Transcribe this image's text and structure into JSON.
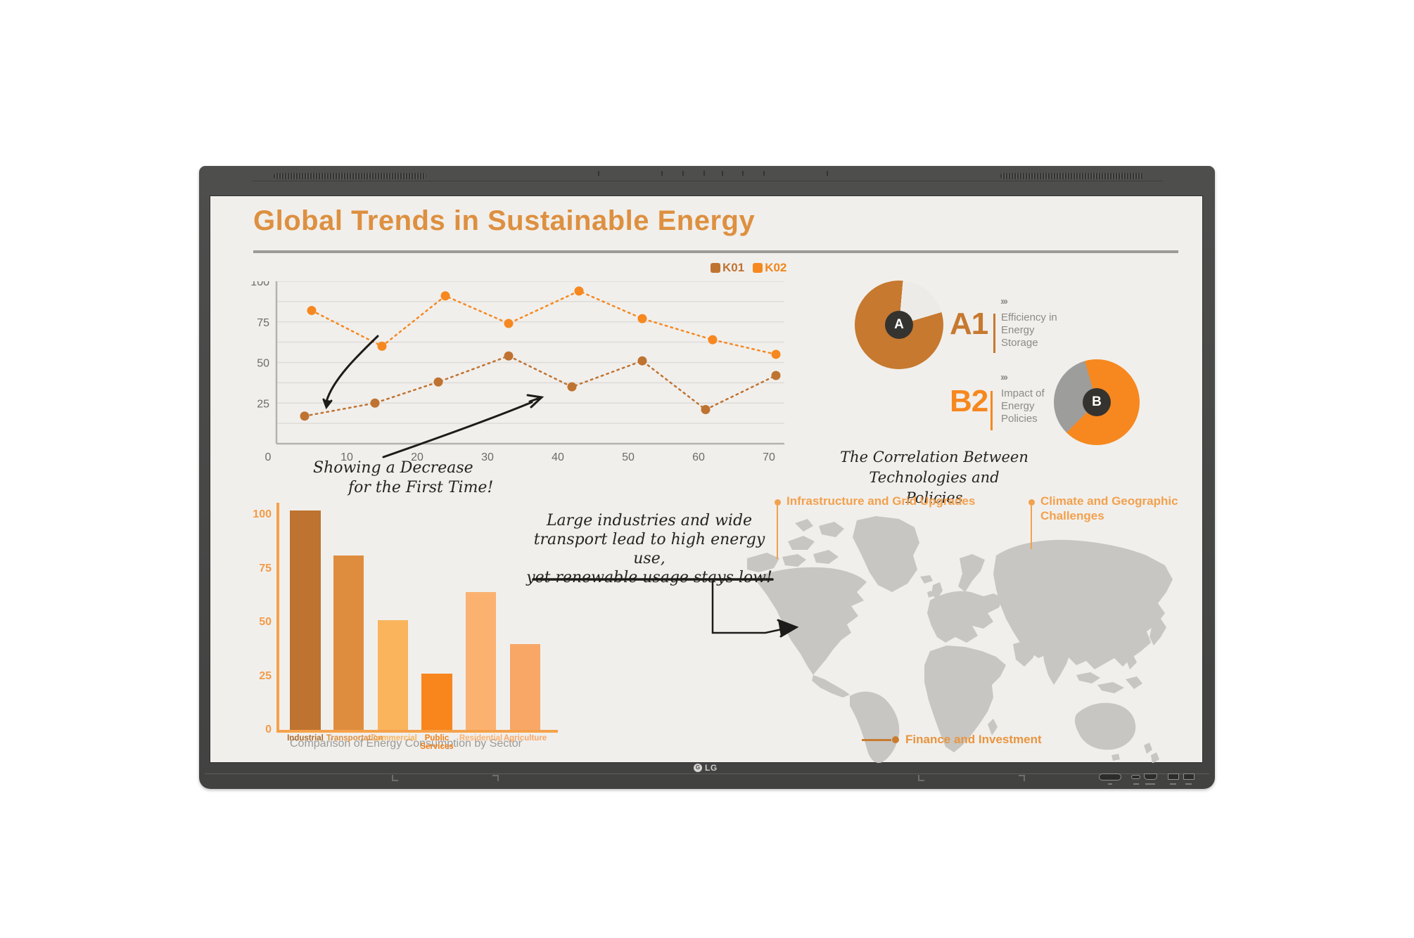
{
  "ui": {
    "title": "Global Trends in Sustainable Energy",
    "legend": {
      "k01": "K01",
      "k02": "K02"
    },
    "annotation_decrease_line1": "Showing a Decrease",
    "annotation_decrease_line2": "for the First Time!",
    "note_line1": "Large industries and wide",
    "note_line2": "transport lead to high energy use,",
    "note_line3": "yet renewable usage stays low!",
    "correlation_line1": "The Correlation Between",
    "correlation_line2": "Technologies and Policies",
    "insight_a": {
      "code": "A1",
      "arrows": "›››",
      "desc_l1": "Efficiency in",
      "desc_l2": "Energy",
      "desc_l3": "Storage",
      "badge": "A"
    },
    "insight_b": {
      "code": "B2",
      "arrows": "›››",
      "desc_l1": "Impact of",
      "desc_l2": "Energy",
      "desc_l3": "Policies",
      "badge": "B"
    },
    "map_labels": {
      "infrastructure": "Infrastructure and Grid Upgrades",
      "climate_l1": "Climate and Geographic",
      "climate_l2": "Challenges",
      "finance": "Finance and Investment"
    },
    "bar_caption": "Comparison of Energy Consumption by Sector",
    "brand": "LG"
  },
  "colors": {
    "accent_title": "#dd9040",
    "k01": "#bf7331",
    "k02": "#f6881f",
    "label_orange": "#f2a14d",
    "finance_orange": "#e8953f",
    "map_gray": "#c7c6c3",
    "pieA_main": "#c6792f",
    "pieA_rest": "#edebe7",
    "pieB_main": "#f6881f",
    "pieB_rest": "#9d9d9c"
  },
  "chart_data": [
    {
      "type": "line",
      "legend_position": "top-right",
      "legend": [
        "K01",
        "K02"
      ],
      "x_ticks": [
        0,
        10,
        20,
        30,
        40,
        50,
        60,
        70
      ],
      "y_ticks": [
        25,
        50,
        75,
        100
      ],
      "origin_label": "0",
      "xlim": [
        0,
        73
      ],
      "ylim": [
        0,
        100
      ],
      "grid": "horizontal-minor",
      "line_style": "dotted",
      "series": [
        {
          "name": "K01",
          "color": "#bf7331",
          "points": [
            [
              4,
              17
            ],
            [
              14,
              25
            ],
            [
              23,
              38
            ],
            [
              33,
              54
            ],
            [
              42,
              35
            ],
            [
              52,
              51
            ],
            [
              61,
              21
            ],
            [
              71,
              42
            ]
          ]
        },
        {
          "name": "K02",
          "color": "#f6881f",
          "points": [
            [
              5,
              82
            ],
            [
              15,
              60
            ],
            [
              24,
              91
            ],
            [
              33,
              74
            ],
            [
              43,
              94
            ],
            [
              52,
              77
            ],
            [
              62,
              64
            ],
            [
              71,
              55
            ]
          ]
        }
      ]
    },
    {
      "type": "bar",
      "title": "Comparison of Energy Consumption by Sector",
      "categories": [
        "Industrial",
        "Transportation",
        "Commercial",
        "Public Services",
        "Residential",
        "Agriculture"
      ],
      "values": [
        102,
        81,
        51,
        26,
        64,
        40
      ],
      "bar_colors": [
        "#be7330",
        "#de8d3f",
        "#f9b45c",
        "#f8861d",
        "#fbb271",
        "#f8a767"
      ],
      "label_colors": [
        "#ad6b2b",
        "#de8d3f",
        "#f9b45c",
        "#f07d12",
        "#fbb271",
        "#f8a767"
      ],
      "y_ticks": [
        0,
        25,
        50,
        75,
        100
      ],
      "ylim": [
        0,
        105
      ],
      "xlabel": "",
      "ylabel": ""
    },
    {
      "type": "pie",
      "id": "A",
      "label": "A1",
      "caption": "Efficiency in Energy Storage",
      "slices": [
        {
          "name": "main",
          "value": 81,
          "color": "#c6792f"
        },
        {
          "name": "remainder",
          "value": 19,
          "color": "#edebe7"
        }
      ],
      "wedge_start_deg": 5
    },
    {
      "type": "pie",
      "id": "B",
      "label": "B2",
      "caption": "Impact of Energy Policies",
      "slices": [
        {
          "name": "main",
          "value": 67,
          "color": "#f6881f"
        },
        {
          "name": "remainder",
          "value": 33,
          "color": "#9d9d9c"
        }
      ],
      "wedge_start_deg": 225
    }
  ]
}
